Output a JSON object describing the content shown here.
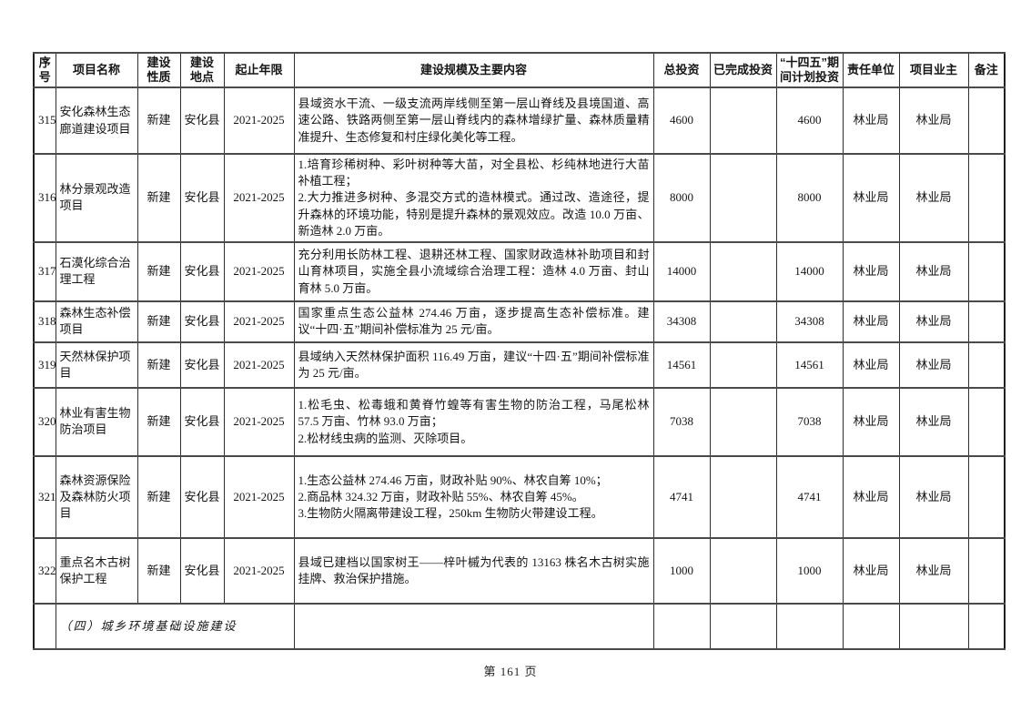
{
  "document": {
    "page_footer": "第 161 页"
  },
  "table": {
    "columns": [
      {
        "label": "序\n号"
      },
      {
        "label": "项目名称"
      },
      {
        "label": "建设\n性质"
      },
      {
        "label": "建设\n地点"
      },
      {
        "label": "起止年限"
      },
      {
        "label": "建设规模及主要内容"
      },
      {
        "label": "总投资"
      },
      {
        "label": "已完成投资"
      },
      {
        "label": "“十四五”期\n间计划投资"
      },
      {
        "label": "责任单位"
      },
      {
        "label": "项目业主"
      },
      {
        "label": "备注"
      }
    ],
    "rows": [
      {
        "seq": "315",
        "name": "安化森林生态廊道建设项目",
        "nature": "新建",
        "location": "安化县",
        "years": "2021-2025",
        "content": "县域资水干流、一级支流两岸线侧至第一层山脊线及县境国道、高速公路、铁路两侧至第一层山脊线内的森林增绿扩量、森林质量精准提升、生态修复和村庄绿化美化等工程。",
        "total": "4600",
        "completed": "",
        "planned": "4600",
        "unit": "林业局",
        "owner": "林业局",
        "note": ""
      },
      {
        "seq": "316",
        "name": "林分景观改造项目",
        "nature": "新建",
        "location": "安化县",
        "years": "2021-2025",
        "content": "1.培育珍稀树种、彩叶树种等大苗，对全县松、杉纯林地进行大苗补植工程；\n2.大力推进多树种、多混交方式的造林模式。通过改、造途径，提升森林的环境功能，特别是提升森林的景观效应。改造 10.0 万亩、新造林 2.0 万亩。",
        "total": "8000",
        "completed": "",
        "planned": "8000",
        "unit": "林业局",
        "owner": "林业局",
        "note": ""
      },
      {
        "seq": "317",
        "name": "石漠化综合治理工程",
        "nature": "新建",
        "location": "安化县",
        "years": "2021-2025",
        "content": "充分利用长防林工程、退耕还林工程、国家财政造林补助项目和封山育林项目，实施全县小流域综合治理工程：造林 4.0 万亩、封山育林 5.0 万亩。",
        "total": "14000",
        "completed": "",
        "planned": "14000",
        "unit": "林业局",
        "owner": "林业局",
        "note": ""
      },
      {
        "seq": "318",
        "name": "森林生态补偿项目",
        "nature": "新建",
        "location": "安化县",
        "years": "2021-2025",
        "content": "国家重点生态公益林 274.46 万亩，逐步提高生态补偿标准。建议“十四·五”期间补偿标准为 25 元/亩。",
        "total": "34308",
        "completed": "",
        "planned": "34308",
        "unit": "林业局",
        "owner": "林业局",
        "note": ""
      },
      {
        "seq": "319",
        "name": "天然林保护项目",
        "nature": "新建",
        "location": "安化县",
        "years": "2021-2025",
        "content": "县域纳入天然林保护面积 116.49 万亩，建议“十四·五”期间补偿标准为 25 元/亩。",
        "total": "14561",
        "completed": "",
        "planned": "14561",
        "unit": "林业局",
        "owner": "林业局",
        "note": ""
      },
      {
        "seq": "320",
        "name": "林业有害生物防治项目",
        "nature": "新建",
        "location": "安化县",
        "years": "2021-2025",
        "content": "1.松毛虫、松毒蛾和黄脊竹蝗等有害生物的防治工程，马尾松林 57.5 万亩、竹林 93.0 万亩；\n2.松材线虫病的监测、灭除项目。",
        "total": "7038",
        "completed": "",
        "planned": "7038",
        "unit": "林业局",
        "owner": "林业局",
        "note": ""
      },
      {
        "seq": "321",
        "name": "森林资源保险及森林防火项目",
        "nature": "新建",
        "location": "安化县",
        "years": "2021-2025",
        "content": "1.生态公益林 274.46 万亩，财政补贴 90%、林农自筹 10%；\n2.商品林 324.32 万亩，财政补贴 55%、林农自筹 45%。\n3.生物防火隔离带建设工程，250km 生物防火带建设工程。",
        "total": "4741",
        "completed": "",
        "planned": "4741",
        "unit": "林业局",
        "owner": "林业局",
        "note": ""
      },
      {
        "seq": "322",
        "name": "重点名木古树保护工程",
        "nature": "新建",
        "location": "安化县",
        "years": "2021-2025",
        "content": "县域已建档以国家树王——梓叶槭为代表的 13163 株名木古树实施挂牌、救治保护措施。",
        "total": "1000",
        "completed": "",
        "planned": "1000",
        "unit": "林业局",
        "owner": "林业局",
        "note": ""
      }
    ],
    "section_row": {
      "seq": "",
      "label": "（四）城乡环境基础设施建设"
    }
  }
}
